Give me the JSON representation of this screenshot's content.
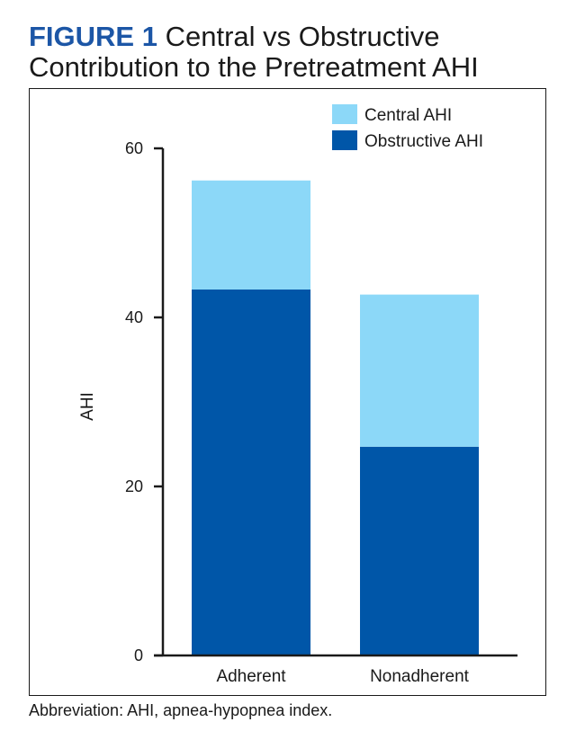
{
  "figure": {
    "label": "FIGURE 1",
    "title": "Central vs Obstructive Contribution to the Pretreatment AHI"
  },
  "footnote": "Abbreviation: AHI, apnea-hypopnea index.",
  "colors": {
    "central": "#8cd8f8",
    "obstructive": "#0056a8",
    "axis": "#1a1a1a"
  },
  "chart_data": {
    "type": "bar",
    "stacked": true,
    "categories": [
      "Adherent",
      "Nonadherent"
    ],
    "series": [
      {
        "name": "Obstructive AHI",
        "values": [
          43.3,
          24.7
        ]
      },
      {
        "name": "Central AHI",
        "values": [
          12.9,
          18.0
        ]
      }
    ],
    "xlabel": "",
    "ylabel": "AHI",
    "ylim": [
      0,
      60
    ],
    "yticks": [
      "0",
      "20",
      "40",
      "60"
    ],
    "grid": false,
    "legend": "top-right"
  }
}
